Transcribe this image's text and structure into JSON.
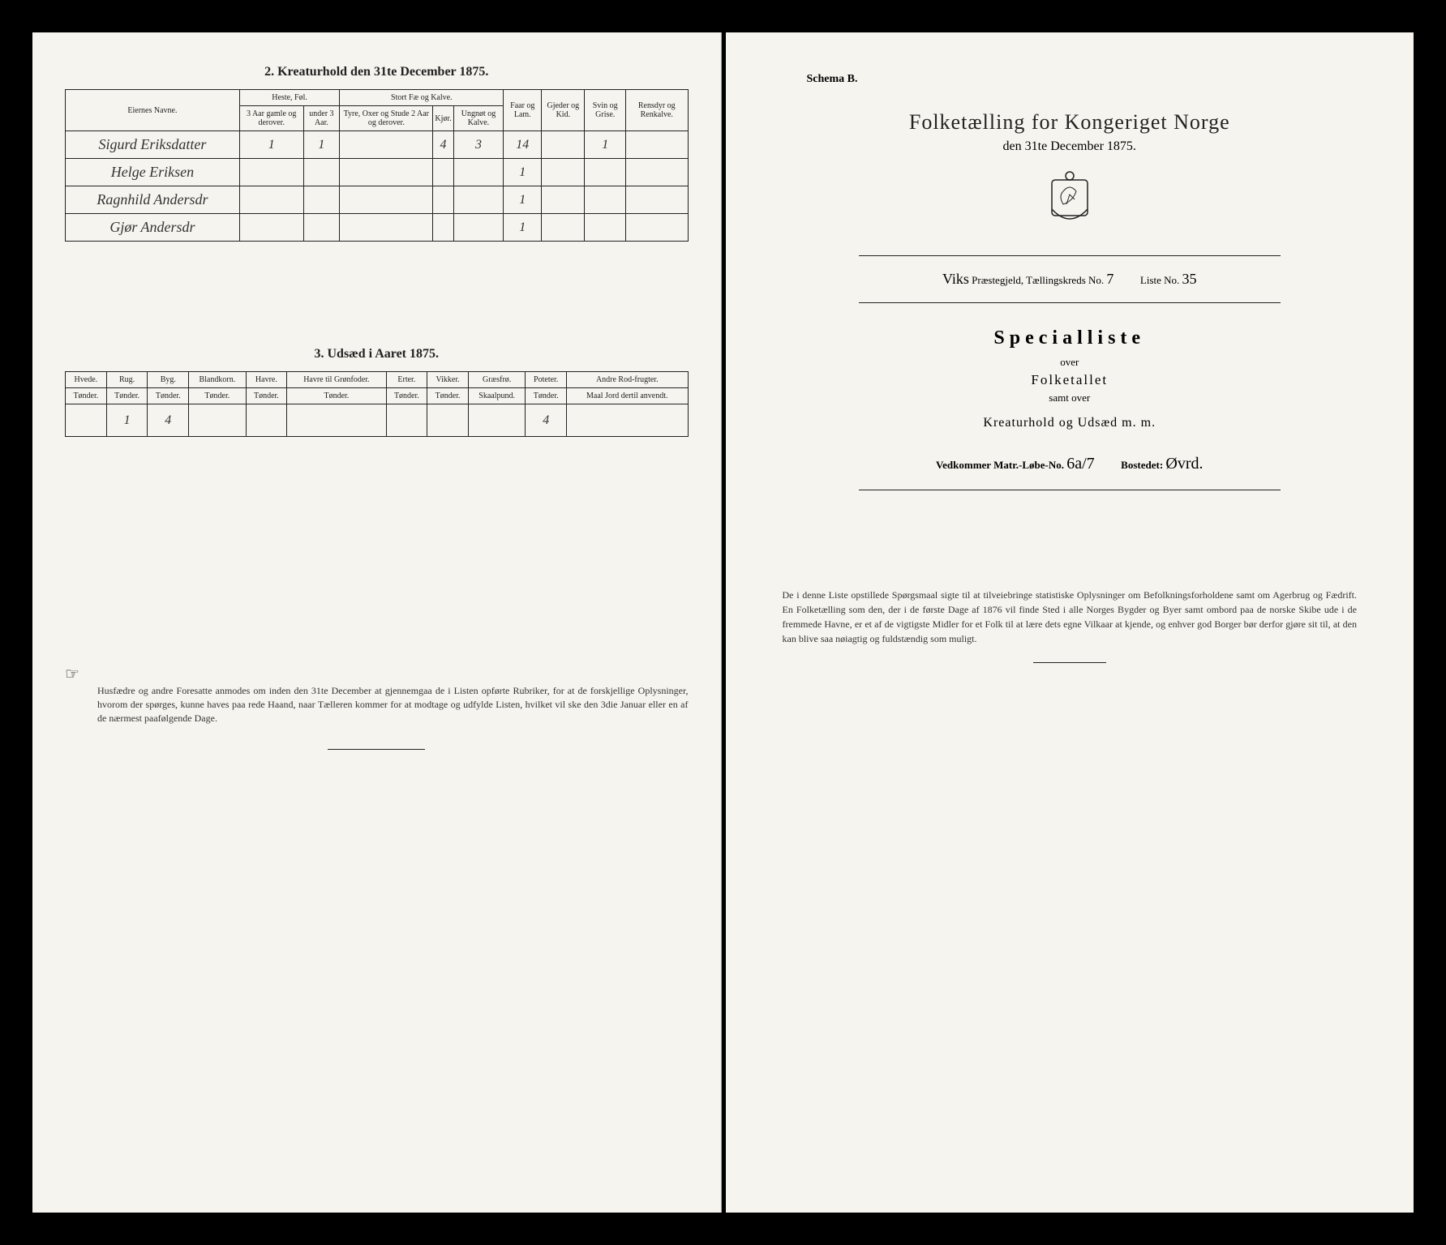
{
  "left": {
    "table2": {
      "title": "2.  Kreaturhold den 31te December 1875.",
      "header": {
        "owners": "Eiernes Navne.",
        "horse_group": "Heste, Føl.",
        "horse_a": "3 Aar gamle og derover.",
        "horse_b": "under 3 Aar.",
        "cattle_group": "Stort Fæ og Kalve.",
        "cattle_a": "Tyre, Oxer og Stude 2 Aar og derover.",
        "cattle_b": "Kjør.",
        "cattle_c": "Ungnøt og Kalve.",
        "sheep": "Faar og Lam.",
        "goats": "Gjeder og Kid.",
        "pigs": "Svin og Grise.",
        "reindeer": "Rensdyr og Renkalve."
      },
      "rows": [
        {
          "owner": "Sigurd Eriksdatter",
          "h1": "1",
          "h2": "1",
          "c1": "",
          "c2": "4",
          "c3": "3",
          "sheep": "14",
          "goats": "",
          "pigs": "1",
          "rein": ""
        },
        {
          "owner": "Helge Eriksen",
          "h1": "",
          "h2": "",
          "c1": "",
          "c2": "",
          "c3": "",
          "sheep": "1",
          "goats": "",
          "pigs": "",
          "rein": ""
        },
        {
          "owner": "Ragnhild Andersdr",
          "h1": "",
          "h2": "",
          "c1": "",
          "c2": "",
          "c3": "",
          "sheep": "1",
          "goats": "",
          "pigs": "",
          "rein": ""
        },
        {
          "owner": "Gjør Andersdr",
          "h1": "",
          "h2": "",
          "c1": "",
          "c2": "",
          "c3": "",
          "sheep": "1",
          "goats": "",
          "pigs": "",
          "rein": ""
        }
      ]
    },
    "table3": {
      "title": "3.  Udsæd i Aaret 1875.",
      "columns": [
        {
          "label": "Hvede.",
          "unit": "Tønder."
        },
        {
          "label": "Rug.",
          "unit": "Tønder."
        },
        {
          "label": "Byg.",
          "unit": "Tønder."
        },
        {
          "label": "Blandkorn.",
          "unit": "Tønder."
        },
        {
          "label": "Havre.",
          "unit": "Tønder."
        },
        {
          "label": "Havre til Grønfoder.",
          "unit": "Tønder."
        },
        {
          "label": "Erter.",
          "unit": "Tønder."
        },
        {
          "label": "Vikker.",
          "unit": "Tønder."
        },
        {
          "label": "Græsfrø.",
          "unit": "Skaalpund."
        },
        {
          "label": "Poteter.",
          "unit": "Tønder."
        },
        {
          "label": "Andre Rod-frugter.",
          "unit": "Maal Jord dertil anvendt."
        }
      ],
      "row": [
        "",
        "1",
        "4",
        "",
        "",
        "",
        "",
        "",
        "",
        "4",
        ""
      ]
    },
    "footnote": "Husfædre og andre Foresatte anmodes om inden den 31te December at gjennemgaa de i Listen opførte Rubriker, for at de forskjellige Oplysninger, hvorom der spørges, kunne haves paa rede Haand, naar Tælleren kommer for at modtage og udfylde Listen, hvilket vil ske den 3die Januar eller en af de nærmest paafølgende Dage."
  },
  "right": {
    "schema": "Schema B.",
    "main_title": "Folketælling for Kongeriget Norge",
    "sub_date": "den 31te December 1875.",
    "parish_label_1": "Viks",
    "parish_label_2": "Præstegjeld, Tællingskreds No.",
    "kreds_no": "7",
    "liste_label": "Liste No.",
    "liste_no": "35",
    "spec_title": "Specialliste",
    "spec_over": "over",
    "spec_folk": "Folketallet",
    "spec_samt": "samt over",
    "spec_kreat": "Kreaturhold og Udsæd m. m.",
    "vedk_label": "Vedkommer Matr.-Løbe-No.",
    "matr_no": "6a/7",
    "bosted_label": "Bostedet:",
    "bosted": "Øvrd.",
    "footnote": "De i denne Liste opstillede Spørgsmaal sigte til at tilveiebringe statistiske Oplysninger om Befolkningsforholdene samt om Agerbrug og Fædrift. En Folketælling som den, der i de første Dage af 1876 vil finde Sted i alle Norges Bygder og Byer samt ombord paa de norske Skibe ude i de fremmede Havne, er et af de vigtigste Midler for et Folk til at lære dets egne Vilkaar at kjende, og enhver god Borger bør derfor gjøre sit til, at den kan blive saa nøiagtig og fuldstændig som muligt."
  }
}
